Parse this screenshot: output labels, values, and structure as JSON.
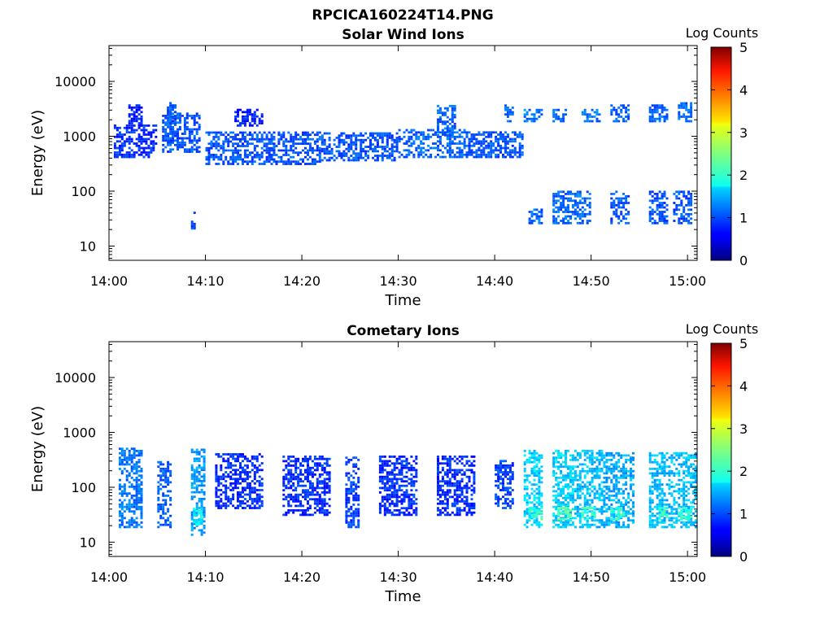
{
  "suptitle": "RPCICA160224T14.PNG",
  "chart_data": [
    {
      "type": "heatmap",
      "title": "Solar Wind Ions",
      "xlabel": "Time",
      "ylabel": "Energy (eV)",
      "x_ticks": [
        "14:00",
        "14:10",
        "14:20",
        "14:30",
        "14:40",
        "14:50",
        "15:00"
      ],
      "xlim_minutes": [
        0,
        61
      ],
      "y_ticks": [
        "10",
        "100",
        "1000",
        "10000"
      ],
      "ylim": [
        5.5,
        45000
      ],
      "yscale": "log",
      "colorbar": {
        "label": "Log Counts",
        "ticks": [
          "0",
          "1",
          "2",
          "3",
          "4",
          "5"
        ],
        "range": [
          0,
          5
        ],
        "colormap": "jet"
      },
      "approx_activity": [
        {
          "t": [
            0.5,
            5.0
          ],
          "e_min": 400,
          "e_max": 1500,
          "level": 0.6
        },
        {
          "t": [
            2.0,
            3.5
          ],
          "e_min": 1500,
          "e_max": 3500,
          "level": 0.5
        },
        {
          "t": [
            5.5,
            9.5
          ],
          "e_min": 500,
          "e_max": 2500,
          "level": 0.8
        },
        {
          "t": [
            6.0,
            7.0
          ],
          "e_min": 1500,
          "e_max": 4000,
          "level": 0.8
        },
        {
          "t": [
            8.5,
            9.0
          ],
          "e_min": 20,
          "e_max": 40,
          "level": 0.7
        },
        {
          "t": [
            10.0,
            22.0
          ],
          "e_min": 300,
          "e_max": 1200,
          "level": 0.8
        },
        {
          "t": [
            13.0,
            16.0
          ],
          "e_min": 1500,
          "e_max": 3000,
          "level": 0.5
        },
        {
          "t": [
            22.0,
            30.0
          ],
          "e_min": 350,
          "e_max": 1100,
          "level": 0.8
        },
        {
          "t": [
            30.0,
            37.0
          ],
          "e_min": 400,
          "e_max": 1300,
          "level": 0.9
        },
        {
          "t": [
            34.0,
            36.0
          ],
          "e_min": 1000,
          "e_max": 3500,
          "level": 0.9
        },
        {
          "t": [
            37.0,
            43.0
          ],
          "e_min": 400,
          "e_max": 1200,
          "level": 0.8
        },
        {
          "t": [
            41.0,
            42.0
          ],
          "e_min": 1800,
          "e_max": 3500,
          "level": 0.9
        },
        {
          "t": [
            43.0,
            45.0
          ],
          "e_min": 1800,
          "e_max": 3000,
          "level": 1.0
        },
        {
          "t": [
            43.5,
            45.0
          ],
          "e_min": 25,
          "e_max": 45,
          "level": 0.9
        },
        {
          "t": [
            46.0,
            47.5
          ],
          "e_min": 1800,
          "e_max": 3000,
          "level": 0.9
        },
        {
          "t": [
            46.0,
            50.0
          ],
          "e_min": 25,
          "e_max": 100,
          "level": 0.9
        },
        {
          "t": [
            49.0,
            51.0
          ],
          "e_min": 1800,
          "e_max": 3000,
          "level": 1.0
        },
        {
          "t": [
            52.0,
            54.0
          ],
          "e_min": 1800,
          "e_max": 3500,
          "level": 0.9
        },
        {
          "t": [
            52.0,
            54.0
          ],
          "e_min": 25,
          "e_max": 100,
          "level": 0.8
        },
        {
          "t": [
            56.0,
            58.0
          ],
          "e_min": 1800,
          "e_max": 3500,
          "level": 0.9
        },
        {
          "t": [
            56.0,
            58.0
          ],
          "e_min": 25,
          "e_max": 100,
          "level": 0.8
        },
        {
          "t": [
            59.0,
            60.5
          ],
          "e_min": 1800,
          "e_max": 4000,
          "level": 0.9
        },
        {
          "t": [
            58.5,
            60.5
          ],
          "e_min": 25,
          "e_max": 100,
          "level": 0.8
        }
      ]
    },
    {
      "type": "heatmap",
      "title": "Cometary Ions",
      "xlabel": "Time",
      "ylabel": "Energy (eV)",
      "x_ticks": [
        "14:00",
        "14:10",
        "14:20",
        "14:30",
        "14:40",
        "14:50",
        "15:00"
      ],
      "xlim_minutes": [
        0,
        61
      ],
      "y_ticks": [
        "10",
        "100",
        "1000",
        "10000"
      ],
      "ylim": [
        5.5,
        45000
      ],
      "yscale": "log",
      "colorbar": {
        "label": "Log Counts",
        "ticks": [
          "0",
          "1",
          "2",
          "3",
          "4",
          "5"
        ],
        "range": [
          0,
          5
        ],
        "colormap": "jet"
      },
      "approx_activity": [
        {
          "t": [
            1.0,
            3.5
          ],
          "e_min": 18,
          "e_max": 500,
          "level": 1.0
        },
        {
          "t": [
            5.0,
            6.5
          ],
          "e_min": 18,
          "e_max": 300,
          "level": 0.9
        },
        {
          "t": [
            8.5,
            10.0
          ],
          "e_min": 13,
          "e_max": 500,
          "level": 1.2
        },
        {
          "t": [
            8.7,
            9.5
          ],
          "e_min": 20,
          "e_max": 40,
          "level": 1.7
        },
        {
          "t": [
            11.0,
            16.0
          ],
          "e_min": 40,
          "e_max": 400,
          "level": 0.6
        },
        {
          "t": [
            18.0,
            23.0
          ],
          "e_min": 30,
          "e_max": 350,
          "level": 0.6
        },
        {
          "t": [
            24.5,
            26.0
          ],
          "e_min": 18,
          "e_max": 350,
          "level": 0.7
        },
        {
          "t": [
            28.0,
            32.0
          ],
          "e_min": 30,
          "e_max": 350,
          "level": 0.6
        },
        {
          "t": [
            34.0,
            38.0
          ],
          "e_min": 30,
          "e_max": 350,
          "level": 0.6
        },
        {
          "t": [
            40.0,
            42.0
          ],
          "e_min": 40,
          "e_max": 300,
          "level": 0.7
        },
        {
          "t": [
            43.0,
            45.0
          ],
          "e_min": 18,
          "e_max": 450,
          "level": 1.5
        },
        {
          "t": [
            43.5,
            45.0
          ],
          "e_min": 25,
          "e_max": 40,
          "level": 2.0
        },
        {
          "t": [
            46.0,
            48.5
          ],
          "e_min": 18,
          "e_max": 450,
          "level": 1.5
        },
        {
          "t": [
            46.5,
            48.0
          ],
          "e_min": 25,
          "e_max": 40,
          "level": 2.2
        },
        {
          "t": [
            48.5,
            51.5
          ],
          "e_min": 18,
          "e_max": 450,
          "level": 1.4
        },
        {
          "t": [
            49.0,
            50.5
          ],
          "e_min": 25,
          "e_max": 40,
          "level": 2.0
        },
        {
          "t": [
            51.5,
            54.5
          ],
          "e_min": 18,
          "e_max": 400,
          "level": 1.3
        },
        {
          "t": [
            52.0,
            53.5
          ],
          "e_min": 25,
          "e_max": 40,
          "level": 2.0
        },
        {
          "t": [
            56.0,
            58.5
          ],
          "e_min": 18,
          "e_max": 400,
          "level": 1.4
        },
        {
          "t": [
            57.0,
            58.0
          ],
          "e_min": 25,
          "e_max": 40,
          "level": 2.0
        },
        {
          "t": [
            58.5,
            61.0
          ],
          "e_min": 18,
          "e_max": 400,
          "level": 1.4
        },
        {
          "t": [
            59.0,
            60.5
          ],
          "e_min": 25,
          "e_max": 40,
          "level": 2.0
        }
      ]
    }
  ]
}
